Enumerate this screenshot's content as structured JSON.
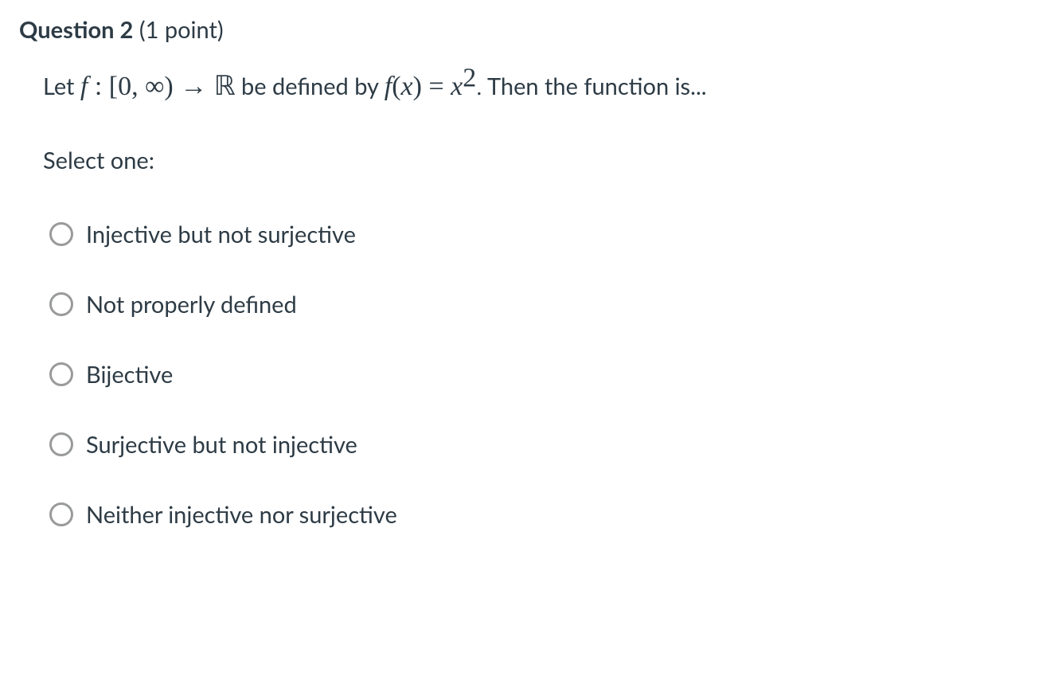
{
  "header": {
    "label": "Question 2",
    "points": "(1 point)"
  },
  "question": {
    "let": "Let",
    "f": "f",
    "colon": " : ",
    "domain_open": "[0, ∞)",
    "arrow": " → ",
    "codomain": "ℝ",
    "be_defined_by": " be defined by",
    "fx": "f",
    "paren_open": "(",
    "x": "x",
    "paren_close": ")",
    "equals": " = ",
    "x2_base": "x",
    "x2_exp": "2",
    "period": ".",
    "then": " Then the function is..."
  },
  "select_one": "Select one:",
  "options": [
    {
      "label": "Injective but not surjective",
      "name": "option-injective-not-surjective"
    },
    {
      "label": "Not properly defined",
      "name": "option-not-properly-defined"
    },
    {
      "label": "Bijective",
      "name": "option-bijective"
    },
    {
      "label": "Surjective but not injective",
      "name": "option-surjective-not-injective"
    },
    {
      "label": "Neither injective nor surjective",
      "name": "option-neither"
    }
  ],
  "colors": {
    "text": "#2d3b45",
    "radio_border": "#999a9b",
    "background": "#ffffff"
  },
  "font_sizes": {
    "body": 29,
    "math_big": 34
  }
}
